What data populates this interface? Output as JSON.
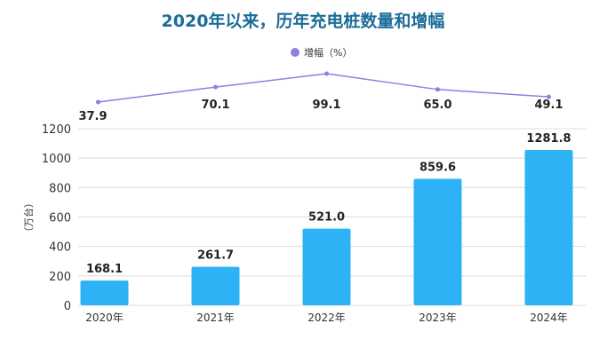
{
  "chart_data": {
    "type": "bar+line",
    "title": "2020年以来，历年充电桩数量和增幅",
    "ylabel": "（万台）",
    "categories": [
      "2020年",
      "2021年",
      "2022年",
      "2023年",
      "2024年"
    ],
    "ylim": [
      0,
      1200
    ],
    "yticks": [
      0,
      200,
      400,
      600,
      800,
      1000,
      1200
    ],
    "grid": true,
    "legend_position": "top",
    "series": [
      {
        "type": "bar",
        "values": [
          168.1,
          261.7,
          521.0,
          859.6,
          1281.8
        ],
        "labels": [
          "168.1",
          "261.7",
          "521.0",
          "859.6",
          "1281.8"
        ],
        "color": "#2db3f5"
      },
      {
        "type": "line",
        "name": "增幅（%）",
        "values": [
          37.9,
          70.1,
          99.1,
          65.0,
          49.1
        ],
        "labels": [
          "37.9",
          "70.1",
          "99.1",
          "65.0",
          "49.1"
        ],
        "color": "#8f7fe0"
      }
    ],
    "title_color": "#1b6d99"
  }
}
